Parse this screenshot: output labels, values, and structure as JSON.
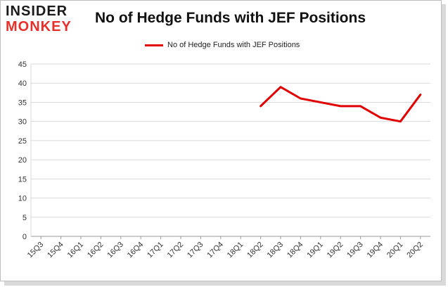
{
  "brand": {
    "line1": "INSIDER",
    "line2": "MONKEY"
  },
  "chart_data": {
    "type": "line",
    "title": "No of Hedge Funds with JEF Positions",
    "xlabel": "",
    "ylabel": "",
    "categories": [
      "15Q3",
      "15Q4",
      "16Q1",
      "16Q2",
      "16Q3",
      "16Q4",
      "17Q1",
      "17Q2",
      "17Q3",
      "17Q4",
      "18Q1",
      "18Q2",
      "18Q3",
      "18Q4",
      "19Q1",
      "19Q2",
      "19Q3",
      "19Q4",
      "20Q1",
      "20Q2"
    ],
    "series": [
      {
        "name": "No of Hedge Funds with JEF Positions",
        "color": "#e00000",
        "values": [
          null,
          null,
          null,
          null,
          null,
          null,
          null,
          null,
          null,
          null,
          null,
          34,
          39,
          36,
          35,
          34,
          34,
          31,
          30,
          37
        ]
      }
    ],
    "ylim": [
      0,
      45
    ],
    "yticks": [
      0,
      5,
      10,
      15,
      20,
      25,
      30,
      35,
      40,
      45
    ],
    "grid": true,
    "legend": "top-center"
  }
}
